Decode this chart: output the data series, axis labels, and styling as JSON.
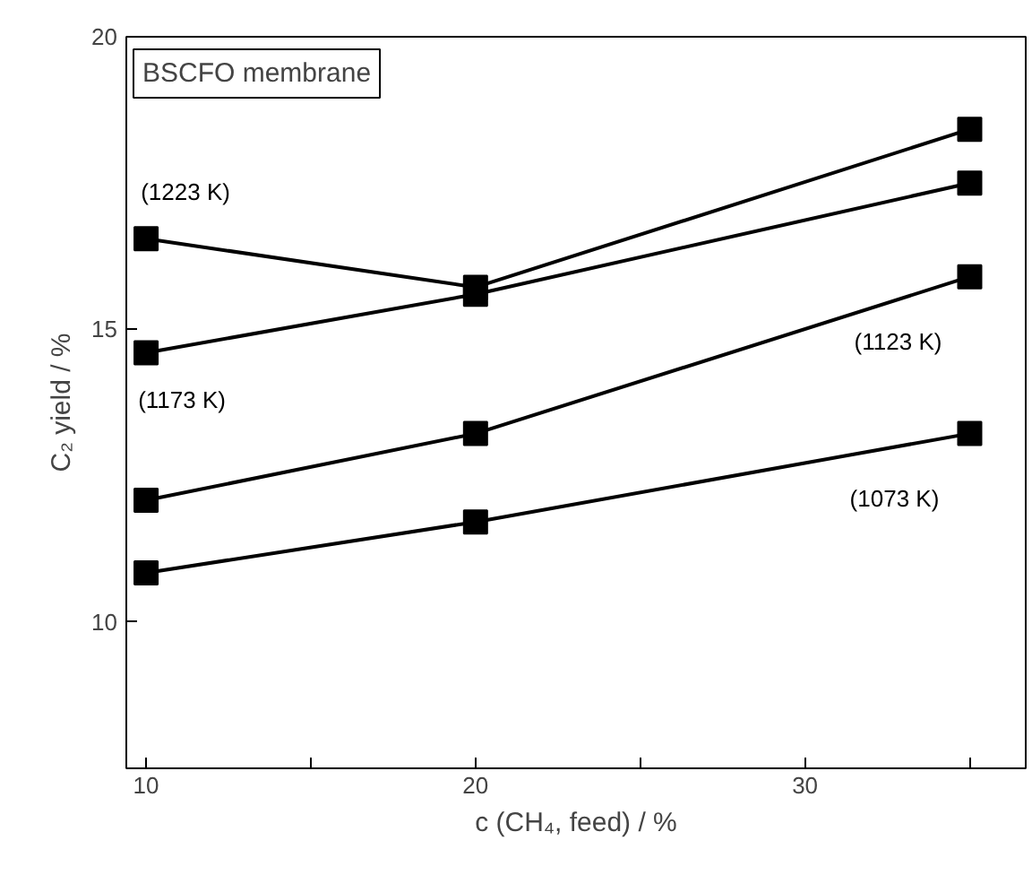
{
  "chart_data": {
    "type": "line",
    "xlabel": "c (CH₄, feed) / %",
    "ylabel": "C₂ yield / %",
    "xlim": [
      9.4,
      36.7
    ],
    "ylim": [
      7.5,
      20
    ],
    "xticks": [
      10,
      {
        "value": 15,
        "label": null
      },
      20,
      {
        "value": 25,
        "label": null
      },
      30,
      {
        "value": 35,
        "label": null
      }
    ],
    "yticks": [
      10,
      15,
      20
    ],
    "grid": false,
    "marker": "square",
    "line_style": "solid",
    "x": [
      10,
      20,
      35
    ],
    "series": [
      {
        "name": "(1223 K)",
        "color": "#000000",
        "values": [
          16.55,
          15.72,
          18.42
        ]
      },
      {
        "name": "(1173 K)",
        "color": "#000000",
        "values": [
          14.6,
          15.6,
          17.5
        ]
      },
      {
        "name": "(1123 K)",
        "color": "#000000",
        "values": [
          12.08,
          13.22,
          15.9
        ]
      },
      {
        "name": "(1073 K)",
        "color": "#000000",
        "values": [
          10.84,
          11.71,
          13.22
        ]
      }
    ],
    "annotations": [
      "BSCFO membrane"
    ]
  }
}
